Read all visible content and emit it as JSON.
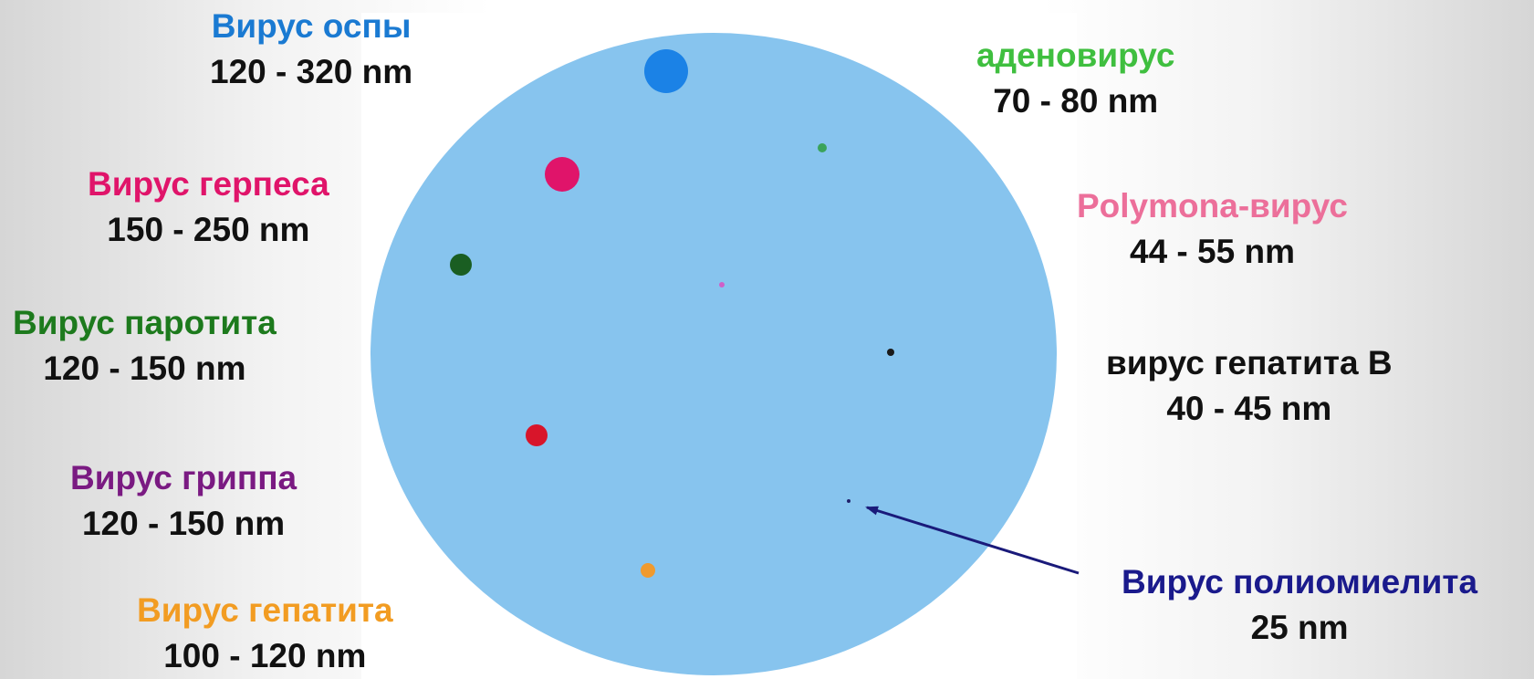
{
  "dish_color": "#87c4ee",
  "arrow_color": "#1a1a7a",
  "viruses": [
    {
      "id": "smallpox",
      "name": "Вирус оспы",
      "size": "120 - 320 nm",
      "color": "#1a7ad2",
      "dot_color": "#1b82e6"
    },
    {
      "id": "adenovirus",
      "name": "аденовирус",
      "size": "70 - 80 nm",
      "color": "#3fbf3f",
      "dot_color": "#3aa35a"
    },
    {
      "id": "herpes",
      "name": "Вирус герпеса",
      "size": "150 - 250 nm",
      "color": "#e0146a",
      "dot_color": "#e0146a"
    },
    {
      "id": "polyoma",
      "name": "Polymona-вирус",
      "size": "44 - 55 nm",
      "color": "#ec6f9a",
      "dot_color": "#d05fc8"
    },
    {
      "id": "mumps",
      "name": "Вирус паротита",
      "size": "120 - 150 nm",
      "color": "#1d7a1d",
      "dot_color": "#1a5e22"
    },
    {
      "id": "hepatitis-b",
      "name": "вирус гепатита B",
      "size": "40 - 45 nm",
      "color": "#111111",
      "dot_color": "#1a1a1a"
    },
    {
      "id": "influenza",
      "name": "Вирус гриппа",
      "size": "120 - 150 nm",
      "color": "#7a1a82",
      "dot_color": "#d8152a"
    },
    {
      "id": "polio",
      "name": "Вирус полиомиелита",
      "size": "25 nm",
      "color": "#1a1a8c",
      "dot_color": "#20206a"
    },
    {
      "id": "hepatitis",
      "name": "Вирус гепатита",
      "size": "100 - 120 nm",
      "color": "#f29c22",
      "dot_color": "#f09a2e"
    }
  ]
}
